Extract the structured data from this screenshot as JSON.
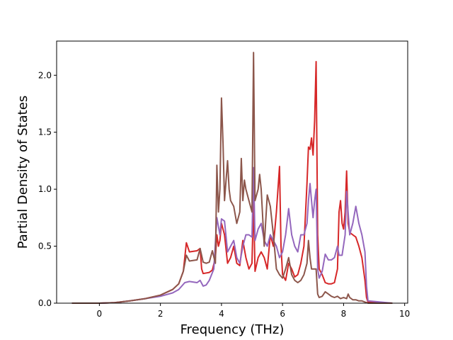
{
  "chart_data": {
    "type": "line",
    "xlabel": "Frequency (THz)",
    "ylabel": "Partial Density of States",
    "xlim": [
      -1.4,
      10.1
    ],
    "ylim": [
      0.0,
      2.3
    ],
    "xticks": [
      "0",
      "2",
      "4",
      "6",
      "8",
      "10"
    ],
    "yticks": [
      "0.0",
      "0.5",
      "1.0",
      "1.5",
      "2.0"
    ],
    "grid": false,
    "legend": "none",
    "series": [
      {
        "color": "#d62728",
        "points": [
          [
            -0.9,
            0
          ],
          [
            0,
            0
          ],
          [
            0.5,
            0.005
          ],
          [
            1.0,
            0.02
          ],
          [
            1.5,
            0.04
          ],
          [
            2.0,
            0.07
          ],
          [
            2.4,
            0.12
          ],
          [
            2.6,
            0.17
          ],
          [
            2.75,
            0.28
          ],
          [
            2.85,
            0.53
          ],
          [
            2.95,
            0.45
          ],
          [
            3.2,
            0.46
          ],
          [
            3.3,
            0.48
          ],
          [
            3.35,
            0.3
          ],
          [
            3.4,
            0.26
          ],
          [
            3.6,
            0.27
          ],
          [
            3.7,
            0.29
          ],
          [
            3.8,
            0.4
          ],
          [
            3.85,
            0.6
          ],
          [
            3.9,
            0.5
          ],
          [
            3.95,
            0.55
          ],
          [
            4.0,
            0.7
          ],
          [
            4.1,
            0.6
          ],
          [
            4.2,
            0.35
          ],
          [
            4.3,
            0.4
          ],
          [
            4.4,
            0.5
          ],
          [
            4.5,
            0.35
          ],
          [
            4.6,
            0.33
          ],
          [
            4.7,
            0.55
          ],
          [
            4.8,
            0.4
          ],
          [
            4.9,
            0.3
          ],
          [
            5.0,
            0.35
          ],
          [
            5.05,
            0.9
          ],
          [
            5.1,
            0.28
          ],
          [
            5.2,
            0.4
          ],
          [
            5.3,
            0.45
          ],
          [
            5.4,
            0.4
          ],
          [
            5.5,
            0.3
          ],
          [
            5.6,
            0.6
          ],
          [
            5.7,
            0.5
          ],
          [
            5.8,
            0.8
          ],
          [
            5.9,
            1.2
          ],
          [
            5.95,
            0.5
          ],
          [
            6.0,
            0.25
          ],
          [
            6.1,
            0.2
          ],
          [
            6.2,
            0.35
          ],
          [
            6.3,
            0.3
          ],
          [
            6.4,
            0.23
          ],
          [
            6.5,
            0.25
          ],
          [
            6.6,
            0.35
          ],
          [
            6.7,
            0.5
          ],
          [
            6.8,
            1.05
          ],
          [
            6.85,
            1.37
          ],
          [
            6.9,
            1.35
          ],
          [
            6.95,
            1.45
          ],
          [
            7.0,
            1.3
          ],
          [
            7.05,
            1.6
          ],
          [
            7.1,
            2.12
          ],
          [
            7.15,
            0.6
          ],
          [
            7.2,
            0.3
          ],
          [
            7.3,
            0.25
          ],
          [
            7.4,
            0.18
          ],
          [
            7.5,
            0.17
          ],
          [
            7.6,
            0.17
          ],
          [
            7.7,
            0.18
          ],
          [
            7.8,
            0.3
          ],
          [
            7.85,
            0.8
          ],
          [
            7.9,
            0.9
          ],
          [
            7.95,
            0.7
          ],
          [
            8.0,
            0.65
          ],
          [
            8.05,
            0.8
          ],
          [
            8.1,
            1.16
          ],
          [
            8.15,
            0.7
          ],
          [
            8.2,
            0.62
          ],
          [
            8.3,
            0.6
          ],
          [
            8.4,
            0.58
          ],
          [
            8.5,
            0.5
          ],
          [
            8.6,
            0.4
          ],
          [
            8.7,
            0.2
          ],
          [
            8.75,
            0.05
          ],
          [
            8.8,
            0.01
          ],
          [
            9.6,
            0
          ]
        ]
      },
      {
        "color": "#9467bd",
        "points": [
          [
            -0.9,
            0
          ],
          [
            0,
            0
          ],
          [
            0.5,
            0.005
          ],
          [
            1.0,
            0.02
          ],
          [
            1.5,
            0.04
          ],
          [
            2.0,
            0.06
          ],
          [
            2.4,
            0.09
          ],
          [
            2.6,
            0.12
          ],
          [
            2.8,
            0.18
          ],
          [
            2.95,
            0.19
          ],
          [
            3.2,
            0.18
          ],
          [
            3.3,
            0.2
          ],
          [
            3.4,
            0.15
          ],
          [
            3.5,
            0.16
          ],
          [
            3.6,
            0.2
          ],
          [
            3.75,
            0.3
          ],
          [
            3.85,
            0.75
          ],
          [
            3.95,
            0.6
          ],
          [
            4.0,
            0.74
          ],
          [
            4.1,
            0.72
          ],
          [
            4.2,
            0.45
          ],
          [
            4.3,
            0.5
          ],
          [
            4.4,
            0.55
          ],
          [
            4.5,
            0.4
          ],
          [
            4.6,
            0.35
          ],
          [
            4.7,
            0.5
          ],
          [
            4.8,
            0.6
          ],
          [
            4.9,
            0.6
          ],
          [
            5.0,
            0.58
          ],
          [
            5.05,
            1.19
          ],
          [
            5.1,
            0.55
          ],
          [
            5.2,
            0.65
          ],
          [
            5.3,
            0.7
          ],
          [
            5.4,
            0.55
          ],
          [
            5.5,
            0.5
          ],
          [
            5.6,
            0.6
          ],
          [
            5.7,
            0.55
          ],
          [
            5.8,
            0.5
          ],
          [
            5.9,
            0.4
          ],
          [
            6.0,
            0.45
          ],
          [
            6.1,
            0.6
          ],
          [
            6.2,
            0.83
          ],
          [
            6.3,
            0.6
          ],
          [
            6.4,
            0.5
          ],
          [
            6.5,
            0.45
          ],
          [
            6.6,
            0.6
          ],
          [
            6.7,
            0.6
          ],
          [
            6.8,
            0.7
          ],
          [
            6.85,
            0.9
          ],
          [
            6.9,
            1.05
          ],
          [
            6.95,
            0.9
          ],
          [
            7.0,
            0.75
          ],
          [
            7.05,
            0.9
          ],
          [
            7.1,
            1.0
          ],
          [
            7.15,
            0.3
          ],
          [
            7.2,
            0.22
          ],
          [
            7.3,
            0.28
          ],
          [
            7.4,
            0.43
          ],
          [
            7.5,
            0.38
          ],
          [
            7.6,
            0.38
          ],
          [
            7.7,
            0.4
          ],
          [
            7.8,
            0.5
          ],
          [
            7.85,
            0.42
          ],
          [
            7.95,
            0.42
          ],
          [
            8.05,
            0.6
          ],
          [
            8.1,
            0.98
          ],
          [
            8.2,
            0.6
          ],
          [
            8.3,
            0.7
          ],
          [
            8.4,
            0.85
          ],
          [
            8.5,
            0.7
          ],
          [
            8.6,
            0.6
          ],
          [
            8.7,
            0.45
          ],
          [
            8.75,
            0.15
          ],
          [
            8.8,
            0.02
          ],
          [
            9.6,
            0
          ]
        ]
      },
      {
        "color": "#8c564b",
        "points": [
          [
            -0.9,
            0
          ],
          [
            0,
            0
          ],
          [
            0.5,
            0.005
          ],
          [
            1.0,
            0.02
          ],
          [
            1.5,
            0.04
          ],
          [
            2.0,
            0.07
          ],
          [
            2.4,
            0.12
          ],
          [
            2.6,
            0.17
          ],
          [
            2.75,
            0.28
          ],
          [
            2.85,
            0.42
          ],
          [
            2.95,
            0.37
          ],
          [
            3.2,
            0.38
          ],
          [
            3.3,
            0.48
          ],
          [
            3.4,
            0.36
          ],
          [
            3.5,
            0.35
          ],
          [
            3.6,
            0.36
          ],
          [
            3.7,
            0.46
          ],
          [
            3.8,
            0.35
          ],
          [
            3.85,
            1.21
          ],
          [
            3.9,
            0.8
          ],
          [
            3.95,
            1.0
          ],
          [
            4.0,
            1.8
          ],
          [
            4.05,
            1.4
          ],
          [
            4.1,
            0.9
          ],
          [
            4.2,
            1.25
          ],
          [
            4.25,
            1.0
          ],
          [
            4.3,
            0.9
          ],
          [
            4.4,
            0.85
          ],
          [
            4.5,
            0.7
          ],
          [
            4.6,
            0.8
          ],
          [
            4.65,
            1.27
          ],
          [
            4.7,
            0.9
          ],
          [
            4.75,
            1.08
          ],
          [
            4.8,
            1.0
          ],
          [
            4.9,
            0.9
          ],
          [
            5.0,
            0.8
          ],
          [
            5.05,
            2.2
          ],
          [
            5.1,
            0.9
          ],
          [
            5.2,
            1.0
          ],
          [
            5.25,
            1.13
          ],
          [
            5.3,
            1.0
          ],
          [
            5.4,
            0.5
          ],
          [
            5.5,
            0.95
          ],
          [
            5.6,
            0.85
          ],
          [
            5.7,
            0.6
          ],
          [
            5.8,
            0.3
          ],
          [
            5.9,
            0.25
          ],
          [
            6.0,
            0.22
          ],
          [
            6.1,
            0.3
          ],
          [
            6.2,
            0.4
          ],
          [
            6.3,
            0.25
          ],
          [
            6.4,
            0.2
          ],
          [
            6.5,
            0.18
          ],
          [
            6.6,
            0.2
          ],
          [
            6.7,
            0.25
          ],
          [
            6.8,
            0.35
          ],
          [
            6.85,
            0.55
          ],
          [
            6.9,
            0.4
          ],
          [
            6.95,
            0.3
          ],
          [
            7.0,
            0.3
          ],
          [
            7.1,
            0.3
          ],
          [
            7.15,
            0.08
          ],
          [
            7.2,
            0.05
          ],
          [
            7.3,
            0.06
          ],
          [
            7.4,
            0.1
          ],
          [
            7.5,
            0.08
          ],
          [
            7.6,
            0.06
          ],
          [
            7.7,
            0.05
          ],
          [
            7.8,
            0.06
          ],
          [
            7.9,
            0.04
          ],
          [
            8.0,
            0.05
          ],
          [
            8.1,
            0.04
          ],
          [
            8.15,
            0.08
          ],
          [
            8.2,
            0.05
          ],
          [
            8.3,
            0.03
          ],
          [
            8.4,
            0.03
          ],
          [
            8.5,
            0.02
          ],
          [
            8.6,
            0.02
          ],
          [
            8.7,
            0.01
          ],
          [
            8.75,
            0.005
          ],
          [
            8.8,
            0
          ],
          [
            9.6,
            0
          ]
        ]
      }
    ]
  }
}
